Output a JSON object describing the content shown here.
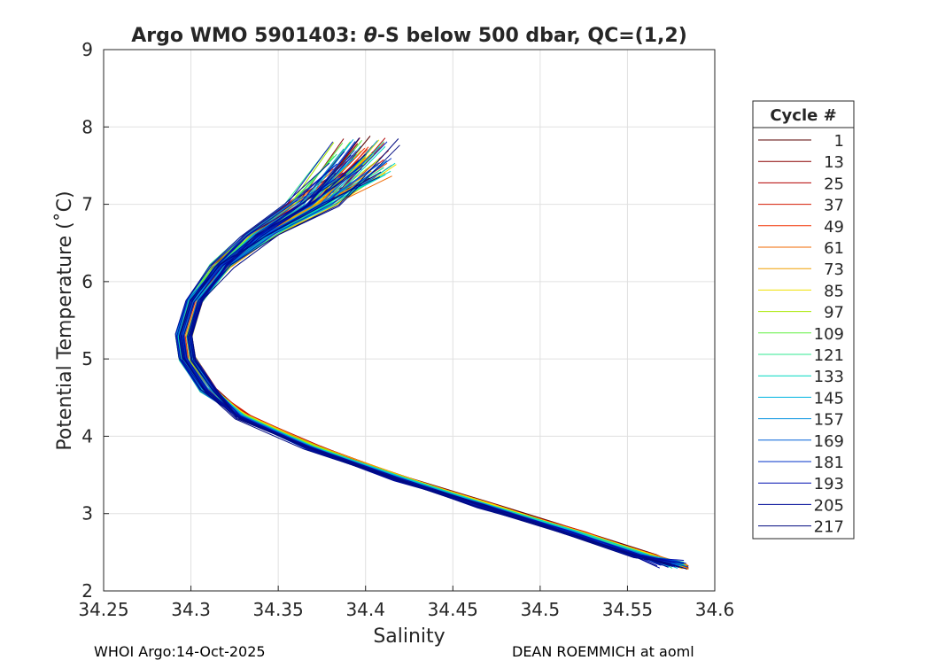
{
  "chart_data": {
    "type": "line",
    "title_prefix": "Argo WMO 5901403: ",
    "title_theta": "θ",
    "title_suffix": "-S below 500 dbar,  QC=(1,2)",
    "xlabel": "Salinity",
    "ylabel": "Potential Temperature (˚C)",
    "xlim": [
      34.25,
      34.6
    ],
    "ylim": [
      2,
      9
    ],
    "xticks": [
      "34.25",
      "34.3",
      "34.35",
      "34.4",
      "34.45",
      "34.5",
      "34.55",
      "34.6"
    ],
    "yticks": [
      "2",
      "3",
      "4",
      "5",
      "6",
      "7",
      "8",
      "9"
    ],
    "grid": true,
    "legend": {
      "title": "Cycle #",
      "position": "right",
      "entries": [
        {
          "label": "1",
          "color": "#5a0000"
        },
        {
          "label": "13",
          "color": "#8a0000"
        },
        {
          "label": "25",
          "color": "#b30000"
        },
        {
          "label": "37",
          "color": "#d41a00"
        },
        {
          "label": "49",
          "color": "#f23000"
        },
        {
          "label": "61",
          "color": "#f06a00"
        },
        {
          "label": "73",
          "color": "#f0a000"
        },
        {
          "label": "85",
          "color": "#f0e000"
        },
        {
          "label": "97",
          "color": "#a8e800"
        },
        {
          "label": "109",
          "color": "#60f040"
        },
        {
          "label": "121",
          "color": "#30e890"
        },
        {
          "label": "133",
          "color": "#00d8c0"
        },
        {
          "label": "145",
          "color": "#00b4e0"
        },
        {
          "label": "157",
          "color": "#0090e0"
        },
        {
          "label": "169",
          "color": "#0060d8"
        },
        {
          "label": "181",
          "color": "#0030c8"
        },
        {
          "label": "193",
          "color": "#0010b0"
        },
        {
          "label": "205",
          "color": "#000c98"
        },
        {
          "label": "217",
          "color": "#000a80"
        }
      ]
    },
    "representative_profile": {
      "S": [
        34.585,
        34.56,
        34.52,
        34.47,
        34.42,
        34.37,
        34.33,
        34.31,
        34.298,
        34.296,
        34.302,
        34.318,
        34.34,
        34.37,
        34.4
      ],
      "T": [
        2.3,
        2.45,
        2.75,
        3.1,
        3.45,
        3.85,
        4.25,
        4.6,
        5.0,
        5.3,
        5.75,
        6.2,
        6.6,
        7.0,
        7.5
      ]
    },
    "series_note": "Approximately 220 cycle profiles; colors follow cycle number from dark red (early) through yellow/green to dark blue (late)."
  },
  "footer": {
    "left": "WHOI Argo:14-Oct-2025",
    "right": "DEAN ROEMMICH at aoml"
  }
}
